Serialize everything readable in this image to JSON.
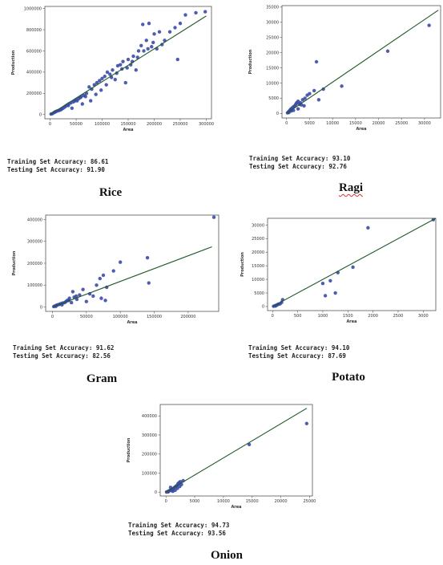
{
  "chart_data": [
    {
      "type": "scatter",
      "crop": "Rice",
      "xlabel": "Area",
      "ylabel": "Production",
      "xticks": [
        0,
        50000,
        100000,
        150000,
        200000,
        250000,
        300000
      ],
      "xticklabels": [
        "0",
        "50000",
        "100000",
        "150000",
        "200000",
        "250000",
        "300000"
      ],
      "yticks": [
        0,
        200000,
        400000,
        600000,
        800000,
        1000000
      ],
      "yticklabels": [
        "0",
        "200000",
        "400000",
        "600000",
        "800000",
        "1000000"
      ],
      "xlim": [
        -10000,
        310000
      ],
      "ylim": [
        -40000,
        1020000
      ],
      "points": [
        [
          2000,
          5000
        ],
        [
          5000,
          10000
        ],
        [
          8000,
          20000
        ],
        [
          12000,
          30000
        ],
        [
          15000,
          35000
        ],
        [
          18000,
          40000
        ],
        [
          22000,
          50000
        ],
        [
          25000,
          60000
        ],
        [
          28000,
          70000
        ],
        [
          30000,
          80000
        ],
        [
          33000,
          90000
        ],
        [
          36000,
          100000
        ],
        [
          40000,
          110000
        ],
        [
          42000,
          60000
        ],
        [
          45000,
          120000
        ],
        [
          48000,
          130000
        ],
        [
          50000,
          140000
        ],
        [
          55000,
          150000
        ],
        [
          58000,
          160000
        ],
        [
          60000,
          170000
        ],
        [
          62000,
          100000
        ],
        [
          65000,
          180000
        ],
        [
          70000,
          200000
        ],
        [
          75000,
          260000
        ],
        [
          78000,
          130000
        ],
        [
          80000,
          240000
        ],
        [
          85000,
          280000
        ],
        [
          90000,
          300000
        ],
        [
          95000,
          320000
        ],
        [
          100000,
          340000
        ],
        [
          105000,
          360000
        ],
        [
          110000,
          400000
        ],
        [
          115000,
          380000
        ],
        [
          120000,
          420000
        ],
        [
          125000,
          330000
        ],
        [
          130000,
          460000
        ],
        [
          135000,
          470000
        ],
        [
          140000,
          500000
        ],
        [
          145000,
          300000
        ],
        [
          150000,
          520000
        ],
        [
          155000,
          470000
        ],
        [
          160000,
          550000
        ],
        [
          165000,
          420000
        ],
        [
          170000,
          600000
        ],
        [
          175000,
          650000
        ],
        [
          178000,
          850000
        ],
        [
          180000,
          600000
        ],
        [
          185000,
          700000
        ],
        [
          190000,
          860000
        ],
        [
          195000,
          640000
        ],
        [
          200000,
          760000
        ],
        [
          205000,
          620000
        ],
        [
          210000,
          780000
        ],
        [
          215000,
          660000
        ],
        [
          220000,
          700000
        ],
        [
          230000,
          780000
        ],
        [
          240000,
          820000
        ],
        [
          245000,
          520000
        ],
        [
          250000,
          860000
        ],
        [
          260000,
          940000
        ],
        [
          280000,
          960000
        ],
        [
          298000,
          970000
        ],
        [
          10000,
          25000
        ],
        [
          20000,
          45000
        ],
        [
          35000,
          85000
        ],
        [
          52000,
          130000
        ],
        [
          68000,
          170000
        ],
        [
          88000,
          190000
        ],
        [
          98000,
          230000
        ],
        [
          108000,
          280000
        ],
        [
          118000,
          350000
        ],
        [
          128000,
          390000
        ],
        [
          138000,
          430000
        ],
        [
          148000,
          440000
        ],
        [
          158000,
          500000
        ],
        [
          168000,
          540000
        ],
        [
          188000,
          620000
        ],
        [
          198000,
          680000
        ]
      ],
      "fit_line": [
        [
          0,
          0
        ],
        [
          300000,
          930000
        ]
      ],
      "metrics": {
        "training": "Training Set Accuracy: 86.61",
        "testing": "Testing Set Accuracy: 91.90"
      }
    },
    {
      "type": "scatter",
      "crop": "Ragi",
      "xlabel": "Area",
      "ylabel": "Production",
      "xticks": [
        0,
        5000,
        10000,
        15000,
        20000,
        25000,
        30000
      ],
      "xticklabels": [
        "0",
        "5000",
        "10000",
        "15000",
        "20000",
        "25000",
        "30000"
      ],
      "yticks": [
        0,
        5000,
        10000,
        15000,
        20000,
        25000,
        30000,
        35000
      ],
      "yticklabels": [
        "0",
        "5000",
        "10000",
        "15000",
        "20000",
        "25000",
        "30000",
        "35000"
      ],
      "xlim": [
        -1000,
        33500
      ],
      "ylim": [
        -1500,
        35500
      ],
      "points": [
        [
          200,
          200
        ],
        [
          400,
          500
        ],
        [
          600,
          800
        ],
        [
          800,
          1200
        ],
        [
          1000,
          1500
        ],
        [
          1200,
          1800
        ],
        [
          1500,
          2200
        ],
        [
          1800,
          2500
        ],
        [
          2000,
          3000
        ],
        [
          2200,
          3500
        ],
        [
          2500,
          4000
        ],
        [
          2800,
          3000
        ],
        [
          3000,
          3500
        ],
        [
          3500,
          4500
        ],
        [
          4000,
          5000
        ],
        [
          4500,
          6000
        ],
        [
          5000,
          6500
        ],
        [
          6000,
          7500
        ],
        [
          6500,
          17000
        ],
        [
          7000,
          4500
        ],
        [
          8000,
          8000
        ],
        [
          12000,
          9000
        ],
        [
          22000,
          20500
        ],
        [
          31000,
          29000
        ],
        [
          1500,
          1000
        ],
        [
          2500,
          1500
        ],
        [
          3200,
          2800
        ],
        [
          3800,
          2500
        ],
        [
          500,
          300
        ],
        [
          1000,
          800
        ]
      ],
      "fit_line": [
        [
          0,
          0
        ],
        [
          33000,
          34000
        ]
      ],
      "metrics": {
        "training": "Training Set Accuracy: 93.10",
        "testing": "Testing Set Accuracy: 92.76"
      }
    },
    {
      "type": "scatter",
      "crop": "Gram",
      "xlabel": "Area",
      "ylabel": "Production",
      "xticks": [
        0,
        50000,
        100000,
        150000,
        200000
      ],
      "xticklabels": [
        "0",
        "50000",
        "100000",
        "150000",
        "200000"
      ],
      "yticks": [
        0,
        100000,
        200000,
        300000,
        400000
      ],
      "yticklabels": [
        "0",
        "100000",
        "200000",
        "300000",
        "400000"
      ],
      "xlim": [
        -10000,
        245000
      ],
      "ylim": [
        -20000,
        420000
      ],
      "points": [
        [
          2000,
          2000
        ],
        [
          4000,
          5000
        ],
        [
          6000,
          8000
        ],
        [
          8000,
          10000
        ],
        [
          10000,
          12000
        ],
        [
          12000,
          15000
        ],
        [
          15000,
          18000
        ],
        [
          18000,
          20000
        ],
        [
          20000,
          25000
        ],
        [
          22000,
          30000
        ],
        [
          25000,
          40000
        ],
        [
          28000,
          20000
        ],
        [
          30000,
          70000
        ],
        [
          32000,
          45000
        ],
        [
          35000,
          50000
        ],
        [
          40000,
          55000
        ],
        [
          45000,
          80000
        ],
        [
          50000,
          25000
        ],
        [
          55000,
          60000
        ],
        [
          60000,
          50000
        ],
        [
          65000,
          100000
        ],
        [
          70000,
          130000
        ],
        [
          72000,
          40000
        ],
        [
          75000,
          145000
        ],
        [
          78000,
          30000
        ],
        [
          80000,
          90000
        ],
        [
          90000,
          165000
        ],
        [
          100000,
          205000
        ],
        [
          140000,
          225000
        ],
        [
          142000,
          110000
        ],
        [
          238000,
          410000
        ],
        [
          5000,
          3000
        ],
        [
          14000,
          10000
        ],
        [
          24000,
          30000
        ],
        [
          36000,
          35000
        ]
      ],
      "fit_line": [
        [
          0,
          0
        ],
        [
          235000,
          275000
        ]
      ],
      "metrics": {
        "training": "Training Set Accuracy: 91.62",
        "testing": "Testing Set Accuracy: 82.56"
      }
    },
    {
      "type": "scatter",
      "crop": "Potato",
      "xlabel": "Area",
      "ylabel": "Production",
      "xticks": [
        0,
        500,
        1000,
        1500,
        2000,
        2500,
        3000
      ],
      "xticklabels": [
        "0",
        "500",
        "1000",
        "1500",
        "2000",
        "2500",
        "3000"
      ],
      "yticks": [
        0,
        5000,
        10000,
        15000,
        20000,
        25000,
        30000
      ],
      "yticklabels": [
        "0",
        "5000",
        "10000",
        "15000",
        "20000",
        "25000",
        "30000"
      ],
      "xlim": [
        -100,
        3250
      ],
      "ylim": [
        -1500,
        32500
      ],
      "points": [
        [
          20,
          100
        ],
        [
          50,
          300
        ],
        [
          80,
          500
        ],
        [
          100,
          700
        ],
        [
          150,
          1000
        ],
        [
          180,
          1500
        ],
        [
          200,
          2500
        ],
        [
          1000,
          8500
        ],
        [
          1050,
          4000
        ],
        [
          1150,
          9500
        ],
        [
          1250,
          5000
        ],
        [
          1300,
          12500
        ],
        [
          1600,
          14500
        ],
        [
          1900,
          29000
        ],
        [
          3200,
          32000
        ],
        [
          60,
          200
        ],
        [
          120,
          900
        ]
      ],
      "fit_line": [
        [
          0,
          0
        ],
        [
          3250,
          32500
        ]
      ],
      "metrics": {
        "training": "Training Set Accuracy: 94.10",
        "testing": "Testing Set Accuracy: 87.69"
      }
    },
    {
      "type": "scatter",
      "crop": "Onion",
      "xlabel": "Area",
      "ylabel": "Production",
      "xticks": [
        0,
        5000,
        10000,
        15000,
        20000,
        25000
      ],
      "xticklabels": [
        "0",
        "5000",
        "10000",
        "15000",
        "20000",
        "25000"
      ],
      "yticks": [
        0,
        100000,
        200000,
        300000,
        400000
      ],
      "yticklabels": [
        "0",
        "100000",
        "200000",
        "300000",
        "400000"
      ],
      "xlim": [
        -1000,
        25500
      ],
      "ylim": [
        -20000,
        460000
      ],
      "points": [
        [
          100,
          1000
        ],
        [
          300,
          3000
        ],
        [
          500,
          6000
        ],
        [
          700,
          9000
        ],
        [
          900,
          12000
        ],
        [
          1100,
          15000
        ],
        [
          1300,
          20000
        ],
        [
          1500,
          25000
        ],
        [
          1700,
          30000
        ],
        [
          1900,
          35000
        ],
        [
          2100,
          45000
        ],
        [
          2300,
          50000
        ],
        [
          2500,
          55000
        ],
        [
          2700,
          40000
        ],
        [
          3000,
          60000
        ],
        [
          1200,
          5000
        ],
        [
          1600,
          10000
        ],
        [
          2000,
          20000
        ],
        [
          2400,
          30000
        ],
        [
          800,
          25000
        ],
        [
          14500,
          250000
        ],
        [
          24500,
          360000
        ],
        [
          400,
          2000
        ],
        [
          1000,
          8000
        ]
      ],
      "fit_line": [
        [
          0,
          0
        ],
        [
          24500,
          440000
        ]
      ],
      "metrics": {
        "training": "Training Set Accuracy: 94.73",
        "testing": "Testing Set Accuracy: 93.56"
      }
    }
  ],
  "colors": {
    "point": "#3b4aa8",
    "line": "#1f5a2a",
    "axis": "#555555"
  }
}
